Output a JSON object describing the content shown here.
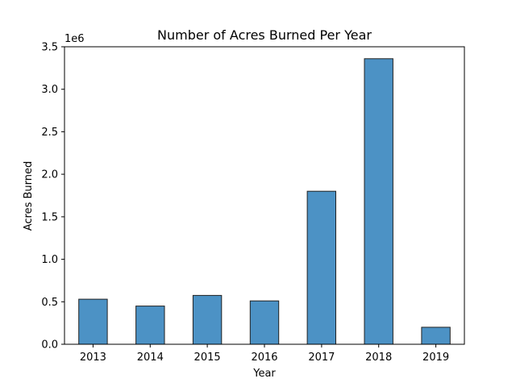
{
  "chart_data": {
    "type": "bar",
    "title": "Number of Acres Burned Per Year",
    "xlabel": "Year",
    "ylabel": "Acres Burned",
    "y_multiplier_label": "1e6",
    "categories": [
      "2013",
      "2014",
      "2015",
      "2016",
      "2017",
      "2018",
      "2019"
    ],
    "values": [
      530000,
      450000,
      575000,
      510000,
      1800000,
      3360000,
      200000
    ],
    "ylim": [
      0,
      3500000
    ],
    "yticks": [
      0,
      500000,
      1000000,
      1500000,
      2000000,
      2500000,
      3000000,
      3500000
    ],
    "ytick_labels": [
      "0.0",
      "0.5",
      "1.0",
      "1.5",
      "2.0",
      "2.5",
      "3.0",
      "3.5"
    ],
    "grid": false,
    "bar_color": "#4c92c5",
    "bar_edge_color": "#222222"
  }
}
